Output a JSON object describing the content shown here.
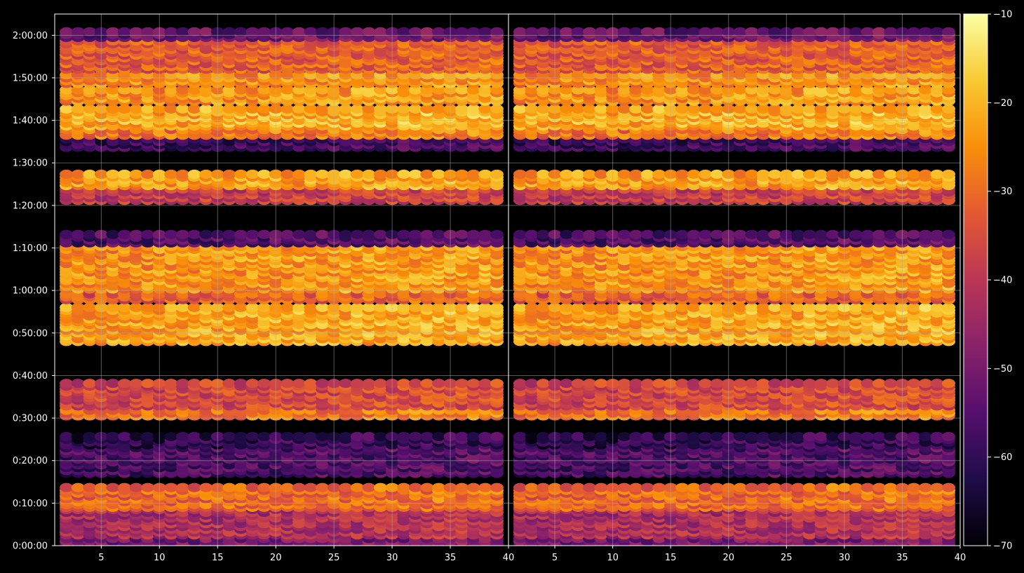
{
  "chart_data": {
    "type": "heatmap",
    "title": "",
    "xlabel": "",
    "ylabel": "",
    "panels": [
      {
        "name": "left",
        "xlim": [
          1,
          40
        ],
        "ylim_seconds": [
          0,
          7500
        ]
      },
      {
        "name": "right",
        "xlim": [
          1,
          40
        ],
        "ylim_seconds": [
          0,
          7500
        ]
      }
    ],
    "x_ticks": [
      5,
      10,
      15,
      20,
      25,
      30,
      35,
      40
    ],
    "x_tick_labels": [
      "5",
      "10",
      "15",
      "20",
      "25",
      "30",
      "35",
      "40"
    ],
    "y_ticks_seconds": [
      0,
      600,
      1200,
      1800,
      2400,
      3000,
      3600,
      4200,
      4800,
      5400,
      6000,
      6600,
      7200
    ],
    "y_tick_labels": [
      "0:00:00",
      "0:10:00",
      "0:20:00",
      "0:30:00",
      "0:40:00",
      "0:50:00",
      "1:00:00",
      "1:10:00",
      "1:20:00",
      "1:30:00",
      "1:40:00",
      "1:50:00",
      "2:00:00"
    ],
    "x_range_points": [
      2,
      39
    ],
    "marker": "ellipse",
    "value_range": [
      -70,
      -10
    ],
    "colormap": "inferno",
    "colorbar_ticks": [
      -10,
      -20,
      -30,
      -40,
      -50,
      -60,
      -70
    ],
    "colorbar_tick_labels": [
      "−10",
      "−20",
      "−30",
      "−40",
      "−50",
      "−60",
      "−70"
    ],
    "grid": true,
    "bands": [
      {
        "y_start_s": 0,
        "y_end_s": 120,
        "value": -50
      },
      {
        "y_start_s": 130,
        "y_end_s": 520,
        "value": -42
      },
      {
        "y_start_s": 520,
        "y_end_s": 850,
        "value": -30
      },
      {
        "y_start_s": 1000,
        "y_end_s": 1450,
        "value": -56
      },
      {
        "y_start_s": 1400,
        "y_end_s": 1560,
        "value": -60
      },
      {
        "y_start_s": 1810,
        "y_end_s": 1950,
        "value": -28
      },
      {
        "y_start_s": 1950,
        "y_end_s": 2300,
        "value": -36
      },
      {
        "y_start_s": 2860,
        "y_end_s": 3400,
        "value": -22
      },
      {
        "y_start_s": 3450,
        "y_end_s": 3580,
        "value": -32
      },
      {
        "y_start_s": 3600,
        "y_end_s": 4230,
        "value": -24
      },
      {
        "y_start_s": 4250,
        "y_end_s": 4400,
        "value": -55
      },
      {
        "y_start_s": 4850,
        "y_end_s": 5060,
        "value": -38
      },
      {
        "y_start_s": 5060,
        "y_end_s": 5280,
        "value": -23
      },
      {
        "y_start_s": 5600,
        "y_end_s": 5760,
        "value": -58
      },
      {
        "y_start_s": 5770,
        "y_end_s": 5900,
        "value": -28
      },
      {
        "y_start_s": 5900,
        "y_end_s": 6200,
        "value": -21
      },
      {
        "y_start_s": 6250,
        "y_end_s": 6470,
        "value": -24
      },
      {
        "y_start_s": 6500,
        "y_end_s": 6680,
        "value": -25
      },
      {
        "y_start_s": 6700,
        "y_end_s": 7150,
        "value": -32
      },
      {
        "y_start_s": 7150,
        "y_end_s": 7260,
        "value": -52
      }
    ]
  }
}
